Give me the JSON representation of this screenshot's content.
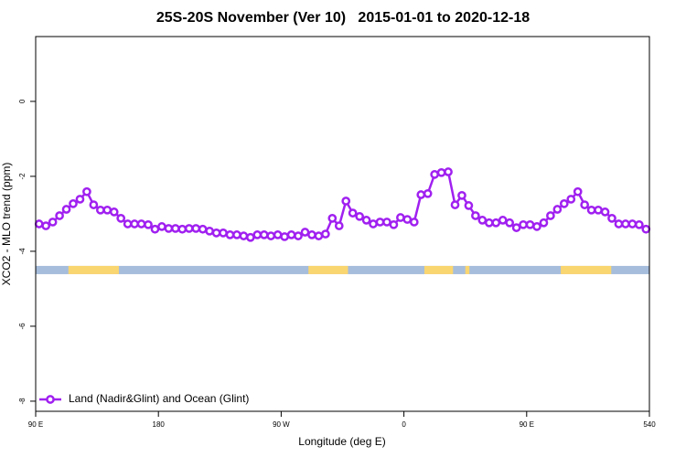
{
  "chart_data": {
    "type": "line",
    "title": "25S-20S November (Ver 10)   2015-01-01 to 2020-12-18",
    "x_label": "Longitude (deg E)",
    "y_label": "XCO2 - MLO trend (ppm)",
    "xlim": [
      90,
      540
    ],
    "xticks": [
      {
        "value": 90,
        "label": "90 E"
      },
      180,
      {
        "value": 270,
        "label": "90 W"
      },
      {
        "value": 360,
        "label": "0"
      },
      {
        "value": 450,
        "label": "90 E"
      },
      540
    ],
    "ylim": [
      -8.27,
      1.73
    ],
    "yticks": [
      0,
      -2,
      -4,
      -6,
      -8
    ],
    "legend": "bottomleft",
    "x": [
      92.5,
      97.5,
      102.5,
      107.5,
      112.5,
      117.5,
      122.5,
      127.5,
      132.5,
      137.5,
      142.5,
      147.5,
      152.5,
      157.5,
      162.5,
      167.5,
      172.5,
      177.5,
      182.5,
      187.5,
      192.5,
      197.5,
      202.5,
      207.5,
      212.5,
      217.5,
      222.5,
      227.5,
      232.5,
      237.5,
      242.5,
      247.5,
      252.5,
      257.5,
      262.5,
      267.5,
      272.5,
      277.5,
      282.5,
      287.5,
      292.5,
      297.5,
      302.5,
      307.5,
      312.5,
      317.5,
      322.5,
      327.5,
      332.5,
      337.5,
      342.5,
      347.5,
      352.5,
      357.5,
      362.5,
      367.5,
      372.5,
      377.5,
      382.5,
      387.5,
      392.5,
      397.5,
      402.5,
      407.5,
      412.5,
      417.5,
      422.5,
      427.5,
      432.5,
      437.5,
      442.5,
      447.5,
      452.5,
      457.5,
      462.5,
      467.5,
      472.5,
      477.5,
      482.5,
      487.5,
      492.5,
      497.5,
      502.5,
      507.5,
      512.5,
      517.5,
      522.5,
      527.5,
      532.5,
      537.5
    ],
    "series": [
      {
        "name": "Land (Nadir&Glint) and Ocean (Glint)",
        "color": "#a020f0",
        "values": [
          -3.27,
          -3.32,
          -3.22,
          -3.05,
          -2.88,
          -2.73,
          -2.61,
          -2.41,
          -2.76,
          -2.9,
          -2.9,
          -2.95,
          -3.12,
          -3.27,
          -3.27,
          -3.27,
          -3.29,
          -3.41,
          -3.34,
          -3.39,
          -3.39,
          -3.41,
          -3.39,
          -3.39,
          -3.41,
          -3.46,
          -3.51,
          -3.51,
          -3.56,
          -3.56,
          -3.59,
          -3.63,
          -3.56,
          -3.56,
          -3.59,
          -3.56,
          -3.61,
          -3.56,
          -3.59,
          -3.49,
          -3.56,
          -3.59,
          -3.54,
          -3.12,
          -3.32,
          -2.66,
          -2.98,
          -3.07,
          -3.17,
          -3.27,
          -3.22,
          -3.22,
          -3.29,
          -3.1,
          -3.15,
          -3.22,
          -2.49,
          -2.46,
          -1.95,
          -1.9,
          -1.88,
          -2.76,
          -2.51,
          -2.78,
          -3.05,
          -3.17,
          -3.24,
          -3.24,
          -3.17,
          -3.24,
          -3.37,
          -3.29,
          -3.29,
          -3.34,
          -3.24,
          -3.05,
          -2.88,
          -2.73,
          -2.61,
          -2.41,
          -2.76,
          -2.9,
          -2.9,
          -2.95,
          -3.12,
          -3.27,
          -3.27,
          -3.27,
          -3.29,
          -3.41
        ]
      }
    ],
    "surface_band": {
      "range": [
        -4.61,
        -4.39
      ],
      "ocean_color": "#a6bddb",
      "land_color": "#fad671",
      "land": [
        [
          114,
          151
        ],
        [
          290,
          319
        ],
        [
          375,
          396
        ],
        [
          405,
          408
        ],
        [
          475,
          512
        ]
      ]
    }
  }
}
